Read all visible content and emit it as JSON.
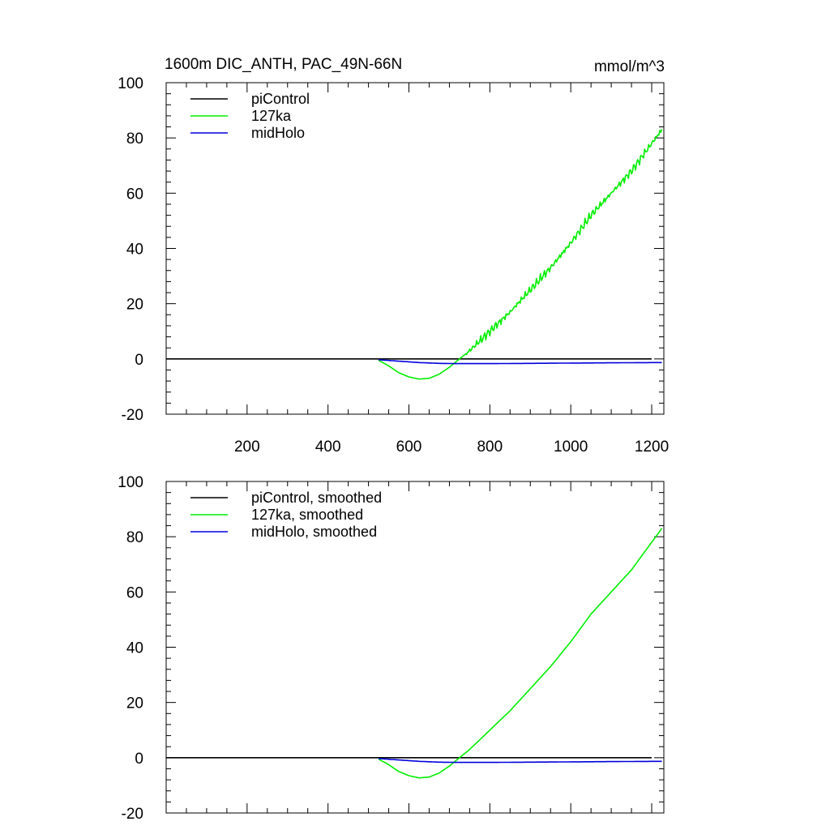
{
  "chart_data": [
    {
      "type": "line",
      "title": "1600m DIC_ANTH, PAC_49N-66N",
      "units_label": "mmol/m^3",
      "xlabel": "",
      "ylabel": "",
      "xlim": [
        0,
        1230
      ],
      "ylim": [
        -20,
        100
      ],
      "x_ticks": [
        200,
        400,
        600,
        800,
        1000,
        1200
      ],
      "x_tick_labels": [
        "200",
        "400",
        "600",
        "800",
        "1000",
        "1200"
      ],
      "y_ticks": [
        -20,
        0,
        20,
        40,
        60,
        80,
        100
      ],
      "y_tick_labels": [
        "-20",
        "0",
        "20",
        "40",
        "60",
        "80",
        "100"
      ],
      "legend_position": "top-left",
      "series": [
        {
          "name": "piControl",
          "color": "#000000",
          "noisy": false,
          "x": [
            0,
            1200
          ],
          "values": [
            0,
            0
          ]
        },
        {
          "name": "127ka",
          "color": "#00ee00",
          "noisy": true,
          "x": [
            525,
            550,
            575,
            600,
            625,
            650,
            675,
            700,
            725,
            750,
            800,
            850,
            900,
            950,
            1000,
            1050,
            1100,
            1150,
            1200,
            1225
          ],
          "values": [
            -0.5,
            -2.5,
            -5.0,
            -6.5,
            -7.3,
            -7.0,
            -5.5,
            -3.0,
            0.0,
            3.0,
            10.0,
            17.0,
            25.0,
            33.0,
            42.0,
            52.0,
            60.0,
            68.0,
            78.0,
            83.0
          ]
        },
        {
          "name": "midHolo",
          "color": "#0000dd",
          "noisy": false,
          "x": [
            525,
            575,
            625,
            675,
            725,
            800,
            900,
            1000,
            1100,
            1225
          ],
          "values": [
            -0.3,
            -0.8,
            -1.3,
            -1.6,
            -1.7,
            -1.7,
            -1.6,
            -1.5,
            -1.4,
            -1.3
          ]
        }
      ]
    },
    {
      "type": "line",
      "title": "",
      "xlabel": "",
      "ylabel": "",
      "xlim": [
        0,
        1230
      ],
      "ylim": [
        -20,
        100
      ],
      "x_ticks": [
        200,
        400,
        600,
        800,
        1000,
        1200
      ],
      "x_tick_labels": [],
      "y_ticks": [
        -20,
        0,
        20,
        40,
        60,
        80,
        100
      ],
      "y_tick_labels": [
        "-20",
        "0",
        "20",
        "40",
        "60",
        "80",
        "100"
      ],
      "legend_position": "top-left",
      "series": [
        {
          "name": "piControl, smoothed",
          "color": "#000000",
          "noisy": false,
          "x": [
            0,
            1200
          ],
          "values": [
            0,
            0
          ]
        },
        {
          "name": "127ka, smoothed",
          "color": "#00ee00",
          "noisy": false,
          "x": [
            525,
            550,
            575,
            600,
            625,
            650,
            675,
            700,
            725,
            750,
            800,
            850,
            900,
            950,
            1000,
            1050,
            1100,
            1150,
            1200,
            1225
          ],
          "values": [
            -0.5,
            -2.5,
            -5.0,
            -6.5,
            -7.3,
            -7.0,
            -5.5,
            -3.0,
            0.0,
            3.0,
            10.0,
            17.0,
            25.0,
            33.0,
            42.0,
            52.0,
            60.0,
            68.0,
            78.0,
            83.0
          ]
        },
        {
          "name": "midHolo, smoothed",
          "color": "#0000dd",
          "noisy": false,
          "x": [
            525,
            575,
            625,
            675,
            725,
            800,
            900,
            1000,
            1100,
            1225
          ],
          "values": [
            -0.3,
            -0.8,
            -1.3,
            -1.6,
            -1.7,
            -1.7,
            -1.6,
            -1.5,
            -1.4,
            -1.3
          ]
        }
      ]
    }
  ]
}
